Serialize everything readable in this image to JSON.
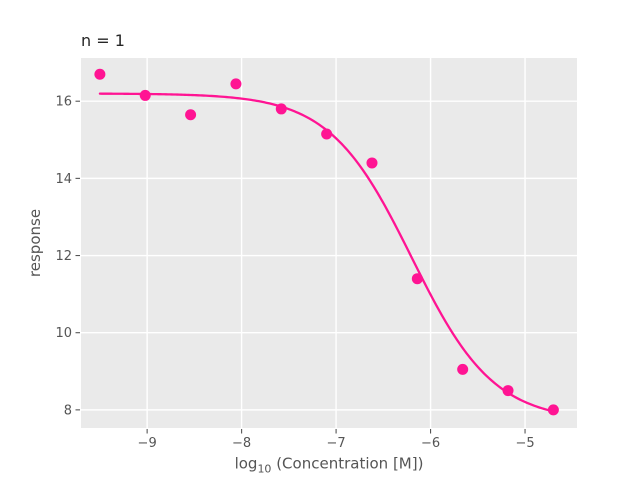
{
  "chart_data": {
    "type": "scatter",
    "title": "n = 1",
    "xlabel": "log10 (Concentration [M])",
    "xlabel_parts": {
      "prefix": "log",
      "sub": "10",
      "rest": " (Concentration [M])"
    },
    "ylabel": "response",
    "x_ticks": [
      -9,
      -8,
      -7,
      -6,
      -5
    ],
    "x_tick_labels": [
      "−9",
      "−8",
      "−7",
      "−6",
      "−5"
    ],
    "y_ticks": [
      8,
      10,
      12,
      14,
      16
    ],
    "y_tick_labels": [
      "8",
      "10",
      "12",
      "14",
      "16"
    ],
    "xlim": [
      -9.7,
      -4.45
    ],
    "ylim": [
      7.53,
      17.12
    ],
    "grid": true,
    "legend": "none",
    "panel_background": "#EAEAEA",
    "grid_color": "#FFFFFF",
    "point_color": "#FF1493",
    "curve_color": "#FF1493",
    "tick_color": "#555555",
    "label_color": "#555555",
    "title_color": "#262626",
    "points": {
      "x": [
        -9.5,
        -9.02,
        -8.54,
        -8.06,
        -7.58,
        -7.1,
        -6.62,
        -6.14,
        -5.66,
        -5.18,
        -4.7
      ],
      "y": [
        16.7,
        16.15,
        15.65,
        16.45,
        15.8,
        15.15,
        14.4,
        11.4,
        9.05,
        8.5,
        8.0
      ]
    },
    "fit_curve": {
      "model": "4PL-logistic",
      "top": 16.2,
      "bottom": 7.7,
      "log_ec50": -6.2,
      "hill": 1,
      "x_start": -9.5,
      "x_end": -4.7
    }
  }
}
